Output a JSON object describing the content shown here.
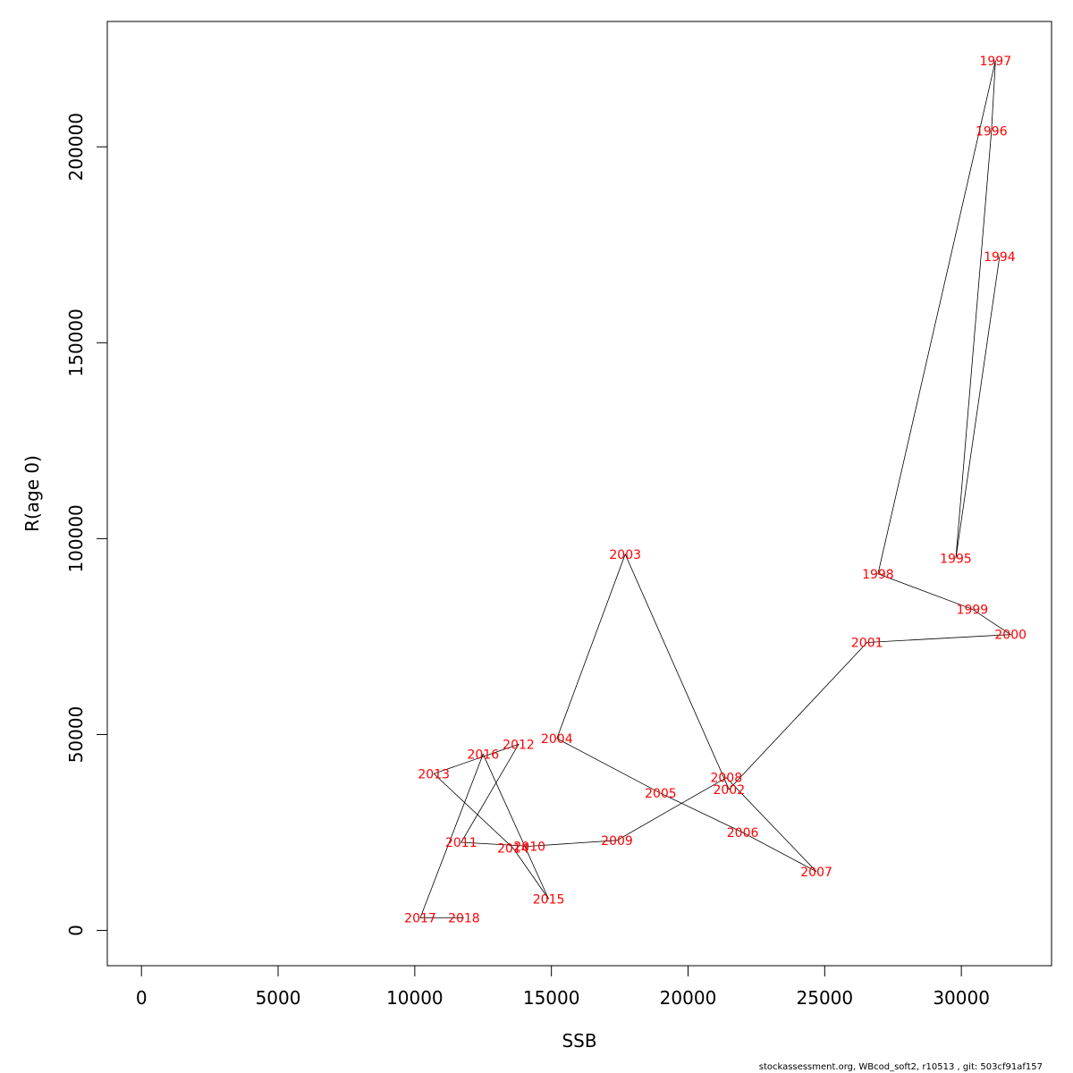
{
  "chart_data": {
    "type": "line",
    "title": "",
    "xlabel": "SSB",
    "ylabel": "R(age 0)",
    "xlim": [
      -1250,
      33300
    ],
    "ylim": [
      -9000,
      232000
    ],
    "x_ticks": [
      0,
      5000,
      10000,
      15000,
      20000,
      25000,
      30000
    ],
    "y_ticks": [
      0,
      50000,
      100000,
      150000,
      200000
    ],
    "points": [
      {
        "year": "1994",
        "x": 31400,
        "y": 172000
      },
      {
        "year": "1995",
        "x": 29800,
        "y": 95000
      },
      {
        "year": "1996",
        "x": 31100,
        "y": 204000
      },
      {
        "year": "1997",
        "x": 31250,
        "y": 222000
      },
      {
        "year": "1998",
        "x": 26950,
        "y": 91000
      },
      {
        "year": "1999",
        "x": 30400,
        "y": 82000
      },
      {
        "year": "2000",
        "x": 31800,
        "y": 75500
      },
      {
        "year": "2001",
        "x": 26550,
        "y": 73500
      },
      {
        "year": "2002",
        "x": 21500,
        "y": 36000
      },
      {
        "year": "2003",
        "x": 17700,
        "y": 96000
      },
      {
        "year": "2004",
        "x": 15200,
        "y": 49000
      },
      {
        "year": "2005",
        "x": 19000,
        "y": 35000
      },
      {
        "year": "2006",
        "x": 22000,
        "y": 25000
      },
      {
        "year": "2007",
        "x": 24700,
        "y": 15000
      },
      {
        "year": "2008",
        "x": 21400,
        "y": 39000
      },
      {
        "year": "2009",
        "x": 17400,
        "y": 23000
      },
      {
        "year": "2010",
        "x": 14200,
        "y": 21500
      },
      {
        "year": "2011",
        "x": 11700,
        "y": 22500
      },
      {
        "year": "2012",
        "x": 13800,
        "y": 47500
      },
      {
        "year": "2013",
        "x": 10700,
        "y": 40000
      },
      {
        "year": "2014",
        "x": 13600,
        "y": 21000
      },
      {
        "year": "2015",
        "x": 14900,
        "y": 8000
      },
      {
        "year": "2016",
        "x": 12500,
        "y": 45000
      },
      {
        "year": "2017",
        "x": 10200,
        "y": 3200
      },
      {
        "year": "2018",
        "x": 11800,
        "y": 3200
      }
    ]
  },
  "footer": "stockassessment.org, WBcod_soft2, r10513 , git: 503cf91af157"
}
